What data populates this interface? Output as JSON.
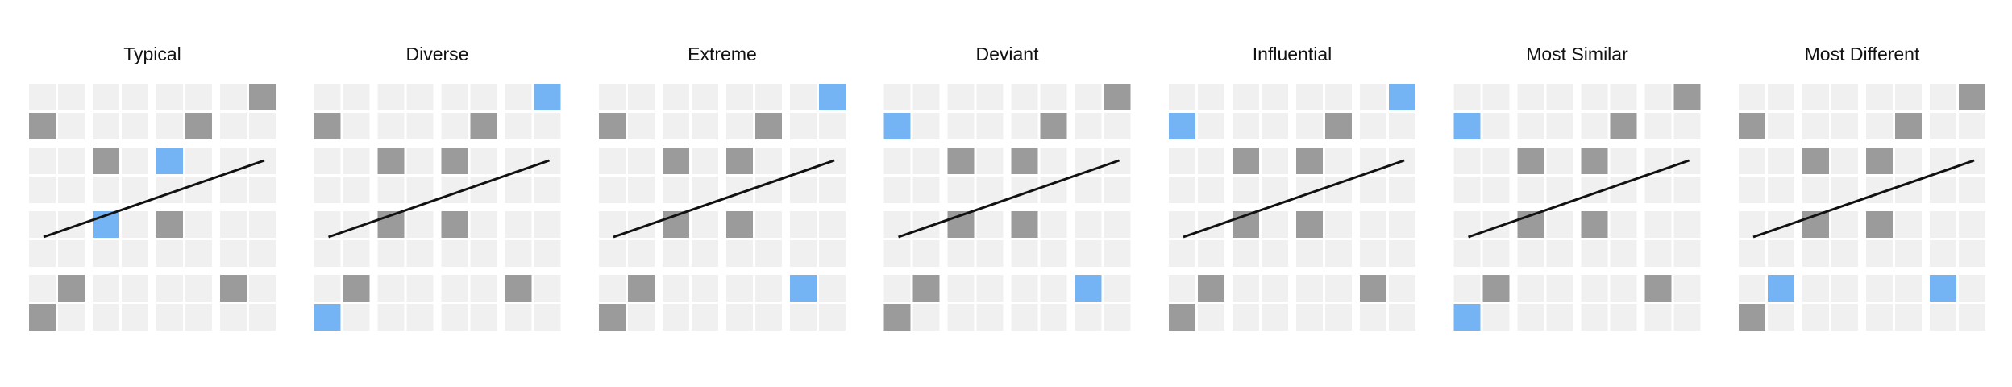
{
  "colors": {
    "empty": "#f0f0f0",
    "gray": "#9b9b9b",
    "blue": "#74b4f4",
    "line": "#111111"
  },
  "line": {
    "from": [
      0.5,
      2.5
    ],
    "to": [
      7.5,
      0.5
    ]
  },
  "panels": [
    {
      "title": "Typical",
      "grays": [
        [
          7,
          0
        ],
        [
          0,
          1
        ],
        [
          5,
          1
        ],
        [
          2,
          2
        ],
        [
          0,
          7
        ],
        [
          1,
          6
        ],
        [
          6,
          6
        ],
        [
          4,
          4
        ]
      ],
      "blues": [
        [
          4,
          2
        ],
        [
          2,
          4
        ]
      ]
    },
    {
      "title": "Diverse",
      "grays": [
        [
          0,
          1
        ],
        [
          5,
          1
        ],
        [
          2,
          2
        ],
        [
          4,
          2
        ],
        [
          2,
          4
        ],
        [
          4,
          4
        ],
        [
          1,
          6
        ],
        [
          6,
          6
        ]
      ],
      "blues": [
        [
          7,
          0
        ],
        [
          0,
          7
        ]
      ]
    },
    {
      "title": "Extreme",
      "grays": [
        [
          0,
          1
        ],
        [
          5,
          1
        ],
        [
          2,
          2
        ],
        [
          4,
          2
        ],
        [
          2,
          4
        ],
        [
          4,
          4
        ],
        [
          1,
          6
        ],
        [
          0,
          7
        ]
      ],
      "blues": [
        [
          7,
          0
        ],
        [
          6,
          6
        ]
      ]
    },
    {
      "title": "Deviant",
      "grays": [
        [
          7,
          0
        ],
        [
          5,
          1
        ],
        [
          2,
          2
        ],
        [
          4,
          2
        ],
        [
          2,
          4
        ],
        [
          4,
          4
        ],
        [
          1,
          6
        ],
        [
          0,
          7
        ]
      ],
      "blues": [
        [
          0,
          1
        ],
        [
          6,
          6
        ]
      ]
    },
    {
      "title": "Influential",
      "grays": [
        [
          5,
          1
        ],
        [
          2,
          2
        ],
        [
          4,
          2
        ],
        [
          2,
          4
        ],
        [
          4,
          4
        ],
        [
          1,
          6
        ],
        [
          6,
          6
        ],
        [
          0,
          7
        ]
      ],
      "blues": [
        [
          7,
          0
        ],
        [
          0,
          1
        ]
      ]
    },
    {
      "title": "Most Similar",
      "grays": [
        [
          7,
          0
        ],
        [
          5,
          1
        ],
        [
          2,
          2
        ],
        [
          4,
          2
        ],
        [
          2,
          4
        ],
        [
          4,
          4
        ],
        [
          1,
          6
        ],
        [
          6,
          6
        ]
      ],
      "blues": [
        [
          0,
          1
        ],
        [
          0,
          7
        ]
      ]
    },
    {
      "title": "Most Different",
      "grays": [
        [
          7,
          0
        ],
        [
          0,
          1
        ],
        [
          5,
          1
        ],
        [
          2,
          2
        ],
        [
          4,
          2
        ],
        [
          2,
          4
        ],
        [
          4,
          4
        ],
        [
          0,
          7
        ]
      ],
      "blues": [
        [
          1,
          6
        ],
        [
          6,
          6
        ]
      ]
    }
  ]
}
